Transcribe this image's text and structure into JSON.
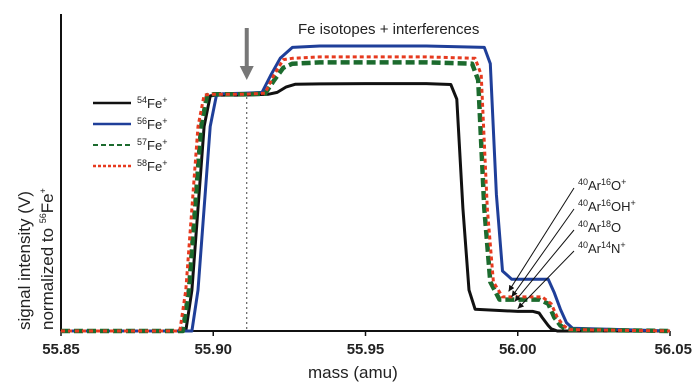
{
  "chart_data": {
    "type": "line",
    "title": "Fe isotopes + interferences",
    "xlabel": "mass (amu)",
    "ylabel": {
      "line1": "signal intensity (V)",
      "line2_prefix": "normalized to ",
      "line2_mass": "56",
      "line2_element": "Fe",
      "line2_charge": "+"
    },
    "xlim": [
      55.85,
      56.05
    ],
    "ylim": [
      0,
      1.0
    ],
    "xticks": [
      "55.85",
      "55.90",
      "55.95",
      "56.00",
      "56.05"
    ],
    "marker_line": {
      "x": 55.911,
      "style": "dotted"
    },
    "arrow": {
      "x": 55.911
    },
    "legend_position": "left",
    "series": [
      {
        "key": "fe54",
        "mass": "54",
        "element": "Fe",
        "charge": "+",
        "color": "#111111",
        "dash": "solid",
        "x": [
          55.85,
          55.891,
          55.893,
          55.895,
          55.897,
          55.899,
          55.901,
          55.91,
          55.918,
          55.921,
          55.924,
          55.927,
          55.935,
          55.95,
          55.97,
          55.978,
          55.98,
          55.982,
          55.984,
          55.986,
          56.0,
          56.003,
          56.005,
          56.007,
          56.008,
          56.01,
          56.011,
          56.013,
          56.05
        ],
        "y": [
          0,
          0,
          0.15,
          0.45,
          0.75,
          0.862,
          0.865,
          0.865,
          0.868,
          0.875,
          0.895,
          0.905,
          0.906,
          0.907,
          0.907,
          0.904,
          0.85,
          0.45,
          0.15,
          0.08,
          0.072,
          0.072,
          0.072,
          0.066,
          0.05,
          0.02,
          0.008,
          0,
          0
        ]
      },
      {
        "key": "fe56",
        "mass": "56",
        "element": "Fe",
        "charge": "+",
        "color": "#1f3f99",
        "dash": "solid",
        "x": [
          55.85,
          55.893,
          55.895,
          55.897,
          55.899,
          55.901,
          55.903,
          55.91,
          55.916,
          55.919,
          55.922,
          55.926,
          55.935,
          55.95,
          55.97,
          55.989,
          55.991,
          55.993,
          55.995,
          55.998,
          56.007,
          56.01,
          56.012,
          56.014,
          56.016,
          56.018,
          56.05
        ],
        "y": [
          0,
          0,
          0.15,
          0.45,
          0.75,
          0.862,
          0.87,
          0.872,
          0.875,
          0.94,
          1.0,
          1.04,
          1.045,
          1.045,
          1.045,
          1.04,
          0.98,
          0.5,
          0.22,
          0.19,
          0.19,
          0.19,
          0.14,
          0.08,
          0.03,
          0.01,
          0
        ]
      },
      {
        "key": "fe57",
        "mass": "57",
        "element": "Fe",
        "charge": "+",
        "color": "#1c6b2e",
        "dash": "dashed",
        "x": [
          55.85,
          55.89,
          55.892,
          55.894,
          55.896,
          55.898,
          55.9,
          55.91,
          55.917,
          55.92,
          55.923,
          55.926,
          55.935,
          55.95,
          55.97,
          55.985,
          55.987,
          55.989,
          55.991,
          55.994,
          56.003,
          56.007,
          56.01,
          56.012,
          56.014,
          56.016,
          56.05
        ],
        "y": [
          0,
          0,
          0.15,
          0.45,
          0.75,
          0.865,
          0.868,
          0.868,
          0.87,
          0.92,
          0.965,
          0.98,
          0.985,
          0.985,
          0.985,
          0.98,
          0.92,
          0.45,
          0.18,
          0.115,
          0.115,
          0.115,
          0.1,
          0.05,
          0.02,
          0.005,
          0
        ]
      },
      {
        "key": "fe58",
        "mass": "58",
        "element": "Fe",
        "charge": "+",
        "color": "#e63a1f",
        "dash": "dotted",
        "x": [
          55.85,
          55.889,
          55.891,
          55.893,
          55.895,
          55.897,
          55.899,
          55.91,
          55.917,
          55.92,
          55.923,
          55.926,
          55.935,
          55.95,
          55.97,
          55.986,
          55.988,
          55.99,
          55.992,
          55.995,
          56.004,
          56.008,
          56.011,
          56.013,
          56.015,
          56.017,
          56.05
        ],
        "y": [
          0,
          0,
          0.15,
          0.45,
          0.75,
          0.865,
          0.868,
          0.868,
          0.872,
          0.94,
          0.995,
          1.0,
          1.005,
          1.005,
          1.005,
          1.0,
          0.94,
          0.45,
          0.18,
          0.125,
          0.125,
          0.125,
          0.1,
          0.05,
          0.02,
          0.005,
          0
        ]
      }
    ],
    "annotations": [
      {
        "key": "ar16o",
        "parts": [
          [
            "40",
            "sup"
          ],
          [
            "Ar",
            ""
          ],
          [
            "16",
            "sup"
          ],
          [
            "O",
            ""
          ],
          [
            "+",
            "sup"
          ]
        ],
        "target_x": 55.997,
        "target_y": 0.145
      },
      {
        "key": "ar16oh",
        "parts": [
          [
            "40",
            "sup"
          ],
          [
            "Ar",
            ""
          ],
          [
            "16",
            "sup"
          ],
          [
            "OH",
            ""
          ],
          [
            "+",
            "sup"
          ]
        ],
        "target_x": 55.998,
        "target_y": 0.125
      },
      {
        "key": "ar18o",
        "parts": [
          [
            "40",
            "sup"
          ],
          [
            "Ar",
            ""
          ],
          [
            "18",
            "sup"
          ],
          [
            "O",
            ""
          ]
        ],
        "target_x": 55.999,
        "target_y": 0.108
      },
      {
        "key": "ar14n",
        "parts": [
          [
            "40",
            "sup"
          ],
          [
            "Ar",
            ""
          ],
          [
            "14",
            "sup"
          ],
          [
            "N",
            ""
          ],
          [
            "+",
            "sup"
          ]
        ],
        "target_x": 56.0,
        "target_y": 0.082
      }
    ]
  }
}
